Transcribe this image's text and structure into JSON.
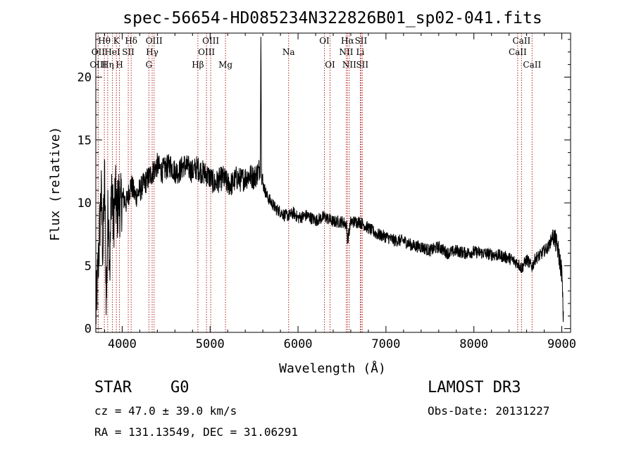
{
  "chart_data": {
    "type": "line",
    "title": "spec-56654-HD085234N322826B01_sp02-041.fits",
    "xlabel": "Wavelength (Å)",
    "ylabel": "Flux (relative)",
    "xlim": [
      3700,
      9100
    ],
    "ylim": [
      -0.3,
      23.5
    ],
    "xticks": [
      4000,
      5000,
      6000,
      7000,
      8000,
      9000
    ],
    "yticks": [
      0,
      5,
      10,
      15,
      20
    ],
    "grid": false,
    "legend": "none",
    "spike_at": 5577,
    "series": [
      {
        "name": "spectrum",
        "x": [
          3700,
          3720,
          3740,
          3760,
          3780,
          3800,
          3820,
          3840,
          3860,
          3880,
          3900,
          3920,
          3940,
          3960,
          3980,
          4000,
          4050,
          4100,
          4150,
          4200,
          4250,
          4300,
          4350,
          4400,
          4450,
          4500,
          4550,
          4600,
          4650,
          4700,
          4750,
          4800,
          4850,
          4900,
          4950,
          5000,
          5050,
          5100,
          5150,
          5200,
          5250,
          5300,
          5350,
          5400,
          5450,
          5500,
          5550,
          5570,
          5577,
          5585,
          5600,
          5650,
          5700,
          5750,
          5800,
          5850,
          5900,
          5950,
          6000,
          6100,
          6200,
          6300,
          6400,
          6500,
          6550,
          6563,
          6600,
          6700,
          6800,
          6900,
          7000,
          7100,
          7200,
          7300,
          7400,
          7500,
          7600,
          7700,
          7800,
          7900,
          8000,
          8100,
          8200,
          8300,
          8400,
          8450,
          8500,
          8542,
          8600,
          8662,
          8700,
          8750,
          8800,
          8850,
          8900,
          8950,
          9000,
          9020
        ],
        "y": [
          1.0,
          4.0,
          7.0,
          11.0,
          6.0,
          12.0,
          2.0,
          10.0,
          5.0,
          12.0,
          8.0,
          11.0,
          9.0,
          10.5,
          9.5,
          10.5,
          10.0,
          11.5,
          10.5,
          11.0,
          11.5,
          12.0,
          12.5,
          13.0,
          12.5,
          12.8,
          13.0,
          12.5,
          12.5,
          13.0,
          12.8,
          12.5,
          12.8,
          12.5,
          12.3,
          12.0,
          11.5,
          11.8,
          12.0,
          11.5,
          11.5,
          12.0,
          11.8,
          12.0,
          12.2,
          12.0,
          12.5,
          13.0,
          23.5,
          12.5,
          11.5,
          10.5,
          10.0,
          9.5,
          9.3,
          9.0,
          9.0,
          9.2,
          8.8,
          9.0,
          8.6,
          8.9,
          8.5,
          8.5,
          8.3,
          7.0,
          8.5,
          8.5,
          8.0,
          7.5,
          7.3,
          7.0,
          7.0,
          6.6,
          6.5,
          6.2,
          6.5,
          6.0,
          6.2,
          6.0,
          6.1,
          6.0,
          5.9,
          5.8,
          5.6,
          5.4,
          5.2,
          4.8,
          5.5,
          4.9,
          5.6,
          5.8,
          6.2,
          6.5,
          7.5,
          6.5,
          4.5,
          0.2
        ]
      }
    ],
    "lines": [
      {
        "label": "Hθ",
        "wl": 3797,
        "row": 0
      },
      {
        "label": "OII",
        "wl": 3727,
        "row": 1
      },
      {
        "label": "OIII",
        "wl": 3727,
        "row": 2
      },
      {
        "label": "K",
        "wl": 3934,
        "row": 0
      },
      {
        "label": "HeI",
        "wl": 3889,
        "row": 1
      },
      {
        "label": "Hη",
        "wl": 3835,
        "row": 2
      },
      {
        "label": "H",
        "wl": 3969,
        "row": 2
      },
      {
        "label": "Hδ",
        "wl": 4102,
        "row": 0
      },
      {
        "label": "SII",
        "wl": 4069,
        "row": 1
      },
      {
        "label": "OIII",
        "wl": 4363,
        "row": 0
      },
      {
        "label": "Hγ",
        "wl": 4341,
        "row": 1
      },
      {
        "label": "G",
        "wl": 4304,
        "row": 2
      },
      {
        "label": "Hβ",
        "wl": 4861,
        "row": 2
      },
      {
        "label": "OIII",
        "wl": 5007,
        "row": 0
      },
      {
        "label": "OIII",
        "wl": 4959,
        "row": 1
      },
      {
        "label": "Mg",
        "wl": 5175,
        "row": 2
      },
      {
        "label": "Na",
        "wl": 5893,
        "row": 1
      },
      {
        "label": "OI",
        "wl": 6300,
        "row": 0
      },
      {
        "label": "OI",
        "wl": 6364,
        "row": 2
      },
      {
        "label": "Hα",
        "wl": 6563,
        "row": 0
      },
      {
        "label": "NII",
        "wl": 6548,
        "row": 1
      },
      {
        "label": "NII",
        "wl": 6583,
        "row": 2
      },
      {
        "label": "SII",
        "wl": 6716,
        "row": 0
      },
      {
        "label": "Li",
        "wl": 6708,
        "row": 1
      },
      {
        "label": "SII",
        "wl": 6731,
        "row": 2
      },
      {
        "label": "CaII",
        "wl": 8542,
        "row": 0
      },
      {
        "label": "CaII",
        "wl": 8498,
        "row": 1
      },
      {
        "label": "CaII",
        "wl": 8662,
        "row": 2
      }
    ]
  },
  "footer": {
    "object_type": "STAR",
    "subclass": "G0",
    "survey": "LAMOST DR3",
    "velocity": "cz = 47.0 ± 39.0 km/s",
    "obs_date": "Obs-Date: 20131227",
    "coords": "RA = 131.13549, DEC =  31.06291"
  }
}
